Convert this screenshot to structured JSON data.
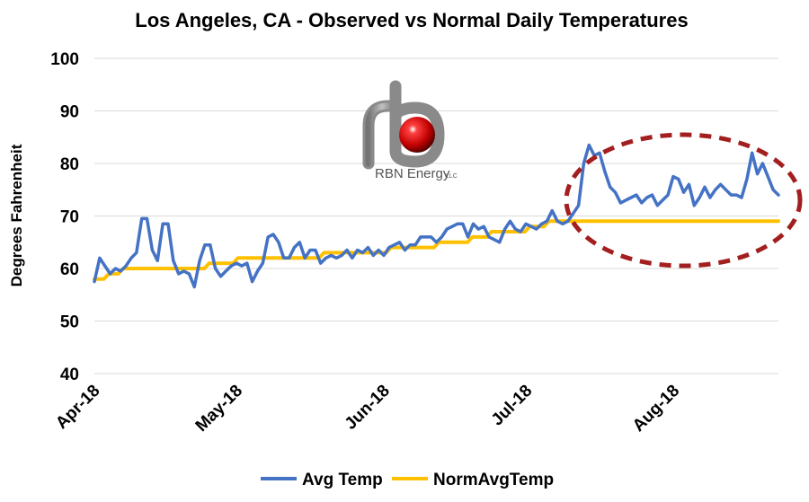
{
  "chart_data": {
    "type": "line",
    "title": "Los Angeles, CA - Observed vs Normal Daily Temperatures",
    "ylabel": "Degrees Fahrenheit",
    "xlabel": "",
    "ylim": [
      40,
      100
    ],
    "yticks": [
      "40",
      "50",
      "60",
      "70",
      "80",
      "90",
      "100"
    ],
    "grid": "horizontal",
    "legend": "bottom",
    "x_tick_labels": [
      "Apr-18",
      "May-18",
      "Jun-18",
      "Jul-18",
      "Aug-18"
    ],
    "x_tick_dates": [
      "2018-04-01",
      "2018-05-01",
      "2018-06-01",
      "2018-07-01",
      "2018-08-01"
    ],
    "x_start": "2018-04-01",
    "x_end": "2018-08-23",
    "series": [
      {
        "name": "Avg Temp",
        "color": "#4472C4",
        "values": [
          57.5,
          62,
          60.5,
          59,
          60,
          59.5,
          60.5,
          62,
          63,
          69.5,
          69.5,
          63.5,
          61.5,
          68.5,
          68.5,
          61.5,
          59,
          59.5,
          59,
          56.5,
          61.5,
          64.5,
          64.5,
          60,
          58.5,
          59.5,
          60.5,
          61,
          60.5,
          61,
          57.5,
          59.5,
          61,
          66,
          66.5,
          65,
          62,
          62,
          64,
          65,
          62,
          63.5,
          63.5,
          61,
          62,
          62.5,
          62,
          62.5,
          63.5,
          62,
          63.5,
          63,
          64,
          62.5,
          63.5,
          62.5,
          64,
          64.5,
          65,
          63.5,
          64.5,
          64.5,
          66,
          66,
          66,
          65,
          66,
          67.5,
          68,
          68.5,
          68.5,
          66,
          68.5,
          67.5,
          68,
          66,
          65.5,
          65,
          67.5,
          69,
          67.5,
          67,
          68.5,
          68,
          67.5,
          68.5,
          69,
          71,
          69,
          68.5,
          69,
          70.5,
          72,
          80,
          83.5,
          81.5,
          82,
          78.5,
          75.5,
          74.5,
          72.5,
          73,
          73.5,
          74,
          72.5,
          73.5,
          74,
          72,
          73,
          74,
          77.5,
          77,
          74.5,
          76,
          72,
          73.5,
          75.5,
          73.5,
          75,
          76,
          75,
          74,
          74,
          73.5,
          77,
          82,
          78,
          80,
          77.5,
          75,
          74
        ]
      },
      {
        "name": "NormAvgTemp",
        "color": "#FFC000",
        "values": [
          58,
          58,
          58,
          59,
          59,
          59,
          60,
          60,
          60,
          60,
          60,
          60,
          60,
          60,
          60,
          60,
          60,
          60,
          60,
          60,
          60,
          60,
          60,
          60,
          61,
          61,
          61,
          61,
          61,
          61,
          62,
          62,
          62,
          62,
          62,
          62,
          62,
          62,
          62,
          62,
          62,
          62,
          62,
          62,
          62,
          62,
          62,
          62,
          63,
          63,
          63,
          63,
          63,
          63,
          63,
          63,
          63,
          63,
          63,
          63,
          63,
          63,
          64,
          64,
          64,
          64,
          64,
          64,
          64,
          64,
          64,
          64,
          65,
          65,
          65,
          65,
          65,
          65,
          65,
          66,
          66,
          66,
          66,
          67,
          67,
          67,
          67,
          67,
          67,
          67,
          67,
          68,
          68,
          68,
          68,
          69,
          69,
          69,
          69,
          69,
          69,
          69,
          69,
          69,
          69,
          69,
          69,
          69,
          69,
          69,
          69,
          69,
          69,
          69,
          69,
          69,
          69,
          69,
          69,
          69,
          69,
          69,
          69,
          69,
          69,
          69,
          69,
          69,
          69,
          69,
          69,
          69,
          69,
          69,
          69,
          69,
          69,
          69,
          69,
          69,
          69,
          69,
          69,
          69
        ]
      }
    ],
    "annotation": {
      "shape": "dashed-ellipse",
      "color": "#A31F1F",
      "highlights": "July–August 2018 heat wave"
    }
  },
  "logo": {
    "brand": "RBN Energy",
    "suffix": "LLC",
    "text_color": "#555555",
    "accent_color": "#CC0000"
  }
}
